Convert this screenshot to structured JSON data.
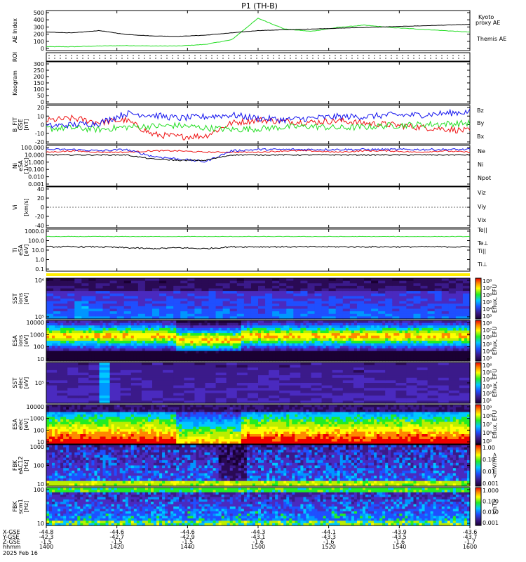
{
  "title": "P1  (TH-B)",
  "colors": {
    "black": "#000000",
    "green": "#22dd22",
    "red": "#ee1111",
    "blue": "#1111ee",
    "yellow": "#ffee00"
  },
  "chart_data": [
    {
      "type": "line",
      "panel": "ae",
      "ylabel": "AE Index",
      "yticks": [
        "500",
        "400",
        "300",
        "200",
        "100",
        "0"
      ],
      "series": [
        {
          "name": "Kyoto proxy AE",
          "color": "green",
          "values": [
            50,
            50,
            60,
            65,
            60,
            60,
            80,
            140,
            420,
            280,
            250,
            300,
            330,
            300,
            280,
            260,
            240
          ]
        },
        {
          "name": "Themis AE",
          "color": "black",
          "values": [
            240,
            230,
            260,
            210,
            190,
            185,
            200,
            230,
            260,
            270,
            280,
            290,
            300,
            310,
            320,
            330,
            340
          ]
        }
      ],
      "legend_labels": [
        "Kyoto",
        "proxy AE",
        "Themis AE"
      ]
    },
    {
      "type": "table",
      "panel": "roi",
      "ylabel": "ROI"
    },
    {
      "type": "heatmap",
      "panel": "keogram",
      "ylabel": "Keogram",
      "yticks": [
        "300",
        "250",
        "200",
        "150",
        "100",
        "50",
        "0"
      ]
    },
    {
      "type": "line",
      "panel": "bfit",
      "ylabel": [
        "B_FIT",
        "GSE",
        "[nT]"
      ],
      "yticks": [
        "20",
        "10",
        "0",
        "-10",
        "-20"
      ],
      "series": [
        {
          "name": "Bz",
          "color": "red",
          "values": [
            5,
            8,
            3,
            6,
            -12,
            -15,
            -14,
            2,
            6,
            4,
            3,
            5,
            2,
            0,
            -3,
            -5,
            -8
          ]
        },
        {
          "name": "By",
          "color": "green",
          "values": [
            -5,
            -4,
            -6,
            -3,
            -2,
            -1,
            -4,
            -6,
            -5,
            -3,
            -2,
            -4,
            -3,
            -1,
            0,
            1,
            2
          ]
        },
        {
          "name": "Bx",
          "color": "blue",
          "values": [
            -2,
            0,
            2,
            14,
            12,
            8,
            10,
            12,
            8,
            6,
            8,
            10,
            10,
            12,
            12,
            14,
            16
          ]
        }
      ]
    },
    {
      "type": "line",
      "panel": "ni",
      "ylabel": [
        "Ni",
        "eSA",
        "[1/cc]"
      ],
      "yticks": [
        "100.000",
        "10.000",
        "1.000",
        "0.100",
        "0.010",
        "0.001"
      ],
      "legend": [
        "Ne",
        "Ni",
        "Npot"
      ]
    },
    {
      "type": "line",
      "panel": "vi",
      "ylabel": [
        "Vi",
        "",
        "[km/s]"
      ],
      "yticks": [
        "40",
        "20",
        "0",
        "-20",
        "-40"
      ],
      "legend": [
        "Viz",
        "Viy",
        "Vix"
      ]
    },
    {
      "type": "line",
      "panel": "ti",
      "ylabel": [
        "Ti",
        "eSA",
        "[eV]"
      ],
      "yticks": [
        "1000.0",
        "100.0",
        "10.0",
        "1.0",
        "0.1"
      ],
      "legend": [
        "Te||",
        "Te⊥",
        "Ti||",
        "Ti⊥"
      ]
    },
    {
      "type": "heatmap",
      "panel": "sst_ion",
      "ylabel": [
        "SST",
        "ions",
        "[eV]"
      ],
      "yticks": [
        "10⁶",
        "10⁵"
      ],
      "cbar_label": "Eflux, EFU",
      "cbar_ticks": [
        "10⁸",
        "10⁷",
        "10⁶",
        "10⁵",
        "10⁴",
        "10³"
      ]
    },
    {
      "type": "heatmap",
      "panel": "esa_ion",
      "ylabel": [
        "ESA",
        "ions",
        "[eV]"
      ],
      "yticks": [
        "10000",
        "1000",
        "100",
        "10"
      ],
      "cbar_label": "Eflux, EFU",
      "cbar_ticks": [
        "10⁸",
        "10⁷",
        "10⁶",
        "10⁵",
        "10⁴",
        "10³"
      ]
    },
    {
      "type": "heatmap",
      "panel": "sst_elec",
      "ylabel": [
        "SST",
        "elec",
        "[eV]"
      ],
      "yticks": [
        "10⁵"
      ],
      "cbar_label": "Eflux, EFU",
      "cbar_ticks": [
        "10⁶",
        "10⁵",
        "10⁴",
        "10³",
        "10²",
        "10¹"
      ]
    },
    {
      "type": "heatmap",
      "panel": "esa_elec",
      "ylabel": [
        "ESA",
        "elec",
        "[eV]"
      ],
      "yticks": [
        "10000",
        "1000",
        "100",
        "10"
      ],
      "cbar_label": "Eflux, EFU",
      "cbar_ticks": [
        "10⁹",
        "10⁸",
        "10⁷",
        "10⁶",
        "10⁵"
      ]
    },
    {
      "type": "heatmap",
      "panel": "fbk_e",
      "ylabel": [
        "FBK",
        "eAC12",
        "[Hz]"
      ],
      "yticks": [
        "1000",
        "100",
        "10"
      ],
      "cbar_label": "<mV/m>",
      "cbar_ticks": [
        "1.00",
        "0.10",
        "0.01",
        "0.001"
      ]
    },
    {
      "type": "heatmap",
      "panel": "fbk_b",
      "ylabel": [
        "FBK",
        "scm1",
        "[Hz]"
      ],
      "yticks": [
        "100",
        "10"
      ],
      "cbar_label": "<nT>",
      "cbar_ticks": [
        "1.000",
        "0.100",
        "0.010",
        "0.001"
      ]
    }
  ],
  "xaxis": {
    "row_labels": [
      "X-GSE",
      "Y-GSE",
      "Z-GSE",
      "hhmm",
      "2025 Feb 16"
    ],
    "ticks": [
      [
        "-44.8",
        "-42.3",
        "-1.5",
        "1400"
      ],
      [
        "-44.6",
        "-42.7",
        "-1.5",
        "1420"
      ],
      [
        "-44.6",
        "-42.9",
        "-1.5",
        "1440"
      ],
      [
        "-44.3",
        "-43.1",
        "-1.6",
        "1500"
      ],
      [
        "-44.1",
        "-43.3",
        "-1.6",
        "1520"
      ],
      [
        "-43.9",
        "-43.5",
        "-1.6",
        "1540"
      ],
      [
        "-43.6",
        "-43.7",
        "-1.7",
        "1600"
      ]
    ]
  }
}
